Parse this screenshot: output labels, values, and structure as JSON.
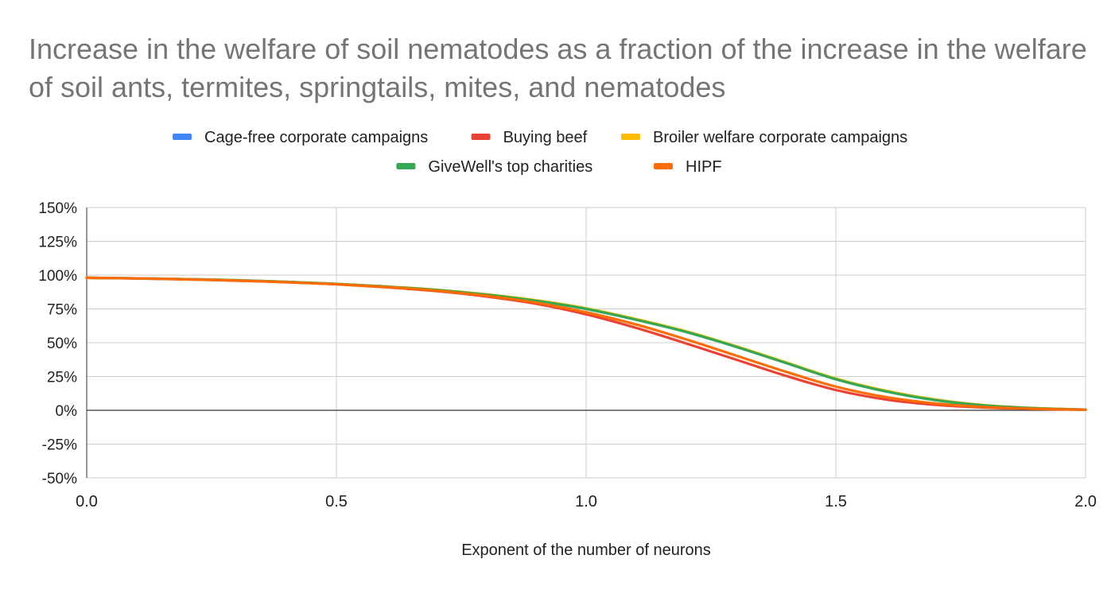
{
  "chart_data": {
    "type": "line",
    "title": "Increase in the welfare of soil nematodes as a fraction of the increase in the welfare of soil ants, termites, springtails, mites, and nematodes",
    "xlabel": "Exponent of the number of neurons",
    "ylabel": "",
    "xlim": [
      0,
      2
    ],
    "ylim": [
      -50,
      150
    ],
    "x_ticks": [
      "0.0",
      "0.5",
      "1.0",
      "1.5",
      "2.0"
    ],
    "y_ticks": [
      "150%",
      "125%",
      "100%",
      "75%",
      "50%",
      "25%",
      "0%",
      "-25%",
      "-50%"
    ],
    "y_tick_values": [
      150,
      125,
      100,
      75,
      50,
      25,
      0,
      -25,
      -50
    ],
    "x_tick_values": [
      0,
      0.5,
      1.0,
      1.5,
      2.0
    ],
    "grid": true,
    "legend_position": "top",
    "x": [
      0,
      0.1,
      0.2,
      0.3,
      0.4,
      0.5,
      0.6,
      0.7,
      0.8,
      0.9,
      1.0,
      1.1,
      1.2,
      1.3,
      1.4,
      1.5,
      1.6,
      1.7,
      1.8,
      1.9,
      2.0
    ],
    "series": [
      {
        "name": "Cage-free corporate campaigns",
        "color": "#4285F4",
        "values": [
          98,
          97.6,
          97,
          96.2,
          95,
          93.5,
          91.5,
          89,
          85.5,
          81,
          75,
          67,
          58,
          47,
          35,
          23,
          14,
          7.5,
          3.5,
          1.5,
          0.5
        ]
      },
      {
        "name": "Buying beef",
        "color": "#EA4335",
        "values": [
          98,
          97.5,
          96.8,
          95.9,
          94.7,
          93.2,
          91,
          88.2,
          84.2,
          78.8,
          71,
          61,
          49.5,
          37.5,
          25.5,
          15,
          8,
          4,
          2,
          1,
          0.4
        ]
      },
      {
        "name": "Broiler welfare corporate campaigns",
        "color": "#FBBC04",
        "values": [
          98,
          97.6,
          97,
          96.2,
          95,
          93.5,
          91.6,
          89.2,
          85.8,
          81.4,
          75.5,
          67.5,
          58.5,
          47.5,
          35.5,
          23.5,
          14.5,
          8,
          3.8,
          1.6,
          0.5
        ]
      },
      {
        "name": "GiveWell's top charities",
        "color": "#34A853",
        "values": [
          98,
          97.6,
          97,
          96.2,
          95,
          93.5,
          91.5,
          89,
          85.5,
          81,
          75,
          67,
          58,
          47,
          35,
          23,
          14,
          7.5,
          3.5,
          1.5,
          0.5
        ]
      },
      {
        "name": "HIPF",
        "color": "#FF6D01",
        "values": [
          98,
          97.6,
          96.9,
          96,
          94.8,
          93.3,
          91.2,
          88.5,
          84.7,
          79.6,
          72.5,
          63.5,
          52.5,
          40.5,
          28.5,
          17.5,
          9.8,
          5,
          2.4,
          1.1,
          0.4
        ]
      }
    ]
  }
}
